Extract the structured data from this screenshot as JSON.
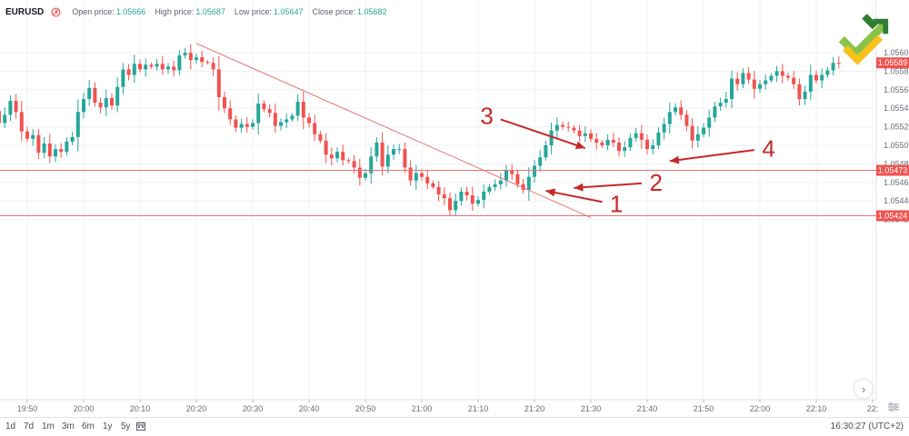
{
  "header": {
    "symbol": "EURUSD",
    "open_label": "Open price:",
    "open_value": "1.05666",
    "high_label": "High price:",
    "high_value": "1.05687",
    "low_label": "Low price:",
    "low_value": "1.05647",
    "close_label": "Close price:",
    "close_value": "1.05682"
  },
  "icons": {
    "clock": "clock-icon",
    "calendar": "calendar-icon",
    "settings": "settings-icon",
    "navigate": "chevron-right-icon",
    "logo": "brand-logo-icon"
  },
  "colors": {
    "up": "#26a69a",
    "down": "#ef5350",
    "line": "#e57373",
    "arrow": "#c62828"
  },
  "bottom_bar": {
    "ranges": [
      "1d",
      "7d",
      "1m",
      "3m",
      "6m",
      "1y",
      "5y"
    ],
    "clock": "16:30:27 (UTC+2)"
  },
  "nav_button": "›",
  "chart_data": {
    "type": "candlestick",
    "x_ticks": [
      "19:50",
      "20:00",
      "20:10",
      "20:20",
      "20:30",
      "20:40",
      "20:50",
      "21:00",
      "21:10",
      "21:20",
      "21:30",
      "21:40",
      "21:50",
      "22:00",
      "22:10",
      "22:"
    ],
    "y_ticks": [
      "1.05600",
      "1.05580",
      "1.05560",
      "1.05540",
      "1.05520",
      "1.05500",
      "1.05480",
      "1.05460",
      "1.05440",
      "1.05420"
    ],
    "ylim": [
      1.05413,
      1.05618
    ],
    "start": "19:42",
    "minutes_per_bar": 1,
    "close": [
      1.05512,
      1.05527,
      1.05537,
      1.05524,
      1.05533,
      1.05548,
      1.05536,
      1.05515,
      1.05507,
      1.05511,
      1.05492,
      1.05502,
      1.05488,
      1.05496,
      1.05493,
      1.05504,
      1.05509,
      1.05536,
      1.0555,
      1.05562,
      1.05546,
      1.05541,
      1.05551,
      1.05543,
      1.05563,
      1.05582,
      1.05576,
      1.05588,
      1.05582,
      1.05587,
      1.05585,
      1.05588,
      1.05582,
      1.05585,
      1.05581,
      1.05597,
      1.056,
      1.05592,
      1.05595,
      1.0559,
      1.05589,
      1.05582,
      1.05552,
      1.0554,
      1.05528,
      1.05519,
      1.05523,
      1.0552,
      1.05524,
      1.05545,
      1.05539,
      1.05535,
      1.05521,
      1.05525,
      1.05528,
      1.05532,
      1.05547,
      1.0553,
      1.05524,
      1.05512,
      1.05505,
      1.0549,
      1.05486,
      1.05493,
      1.05484,
      1.05483,
      1.05476,
      1.05465,
      1.0547,
      1.05488,
      1.05503,
      1.05477,
      1.0549,
      1.05496,
      1.05496,
      1.05476,
      1.05462,
      1.0547,
      1.05466,
      1.05459,
      1.05455,
      1.05447,
      1.05443,
      1.0543,
      1.0544,
      1.0545,
      1.05446,
      1.05437,
      1.05441,
      1.0545,
      1.05455,
      1.05458,
      1.05462,
      1.05473,
      1.05469,
      1.05458,
      1.05452,
      1.05466,
      1.05478,
      1.05487,
      1.055,
      1.05516,
      1.05522,
      1.0552,
      1.05519,
      1.05516,
      1.0551,
      1.05513,
      1.05507,
      1.05503,
      1.055,
      1.05506,
      1.05503,
      1.05494,
      1.05498,
      1.05508,
      1.05513,
      1.05506,
      1.05496,
      1.055,
      1.05514,
      1.05523,
      1.05536,
      1.05541,
      1.05533,
      1.05521,
      1.05505,
      1.05512,
      1.05519,
      1.0553,
      1.05542,
      1.05546,
      1.0555,
      1.05572,
      1.05566,
      1.05578,
      1.05571,
      1.05561,
      1.05566,
      1.0557,
      1.05575,
      1.0558,
      1.05575,
      1.05573,
      1.05566,
      1.0555,
      1.05558,
      1.05576,
      1.0557,
      1.05576,
      1.05581,
      1.05589,
      1.05588
    ],
    "trendline": {
      "from": [
        "20:20",
        1.0561
      ],
      "to": [
        "21:30",
        1.05422
      ]
    },
    "levels": [
      {
        "value": 1.05473,
        "label": "1.05473"
      },
      {
        "value": 1.05424,
        "label": "1.05424"
      }
    ],
    "last_price": {
      "value": 1.05589,
      "label": "1.05589"
    },
    "annotations": [
      {
        "text": "1",
        "tail": [
          "21:32",
          1.05439
        ],
        "tip": [
          "21:22",
          1.05451
        ]
      },
      {
        "text": "2",
        "tail": [
          "21:39",
          1.05459
        ],
        "tip": [
          "21:27",
          1.05454
        ]
      },
      {
        "text": "3",
        "tail": [
          "21:14",
          1.05528
        ],
        "tip": [
          "21:29",
          1.05497
        ]
      },
      {
        "text": "4",
        "tail": [
          "21:59",
          1.05495
        ],
        "tip": [
          "21:44",
          1.05483
        ]
      }
    ]
  }
}
